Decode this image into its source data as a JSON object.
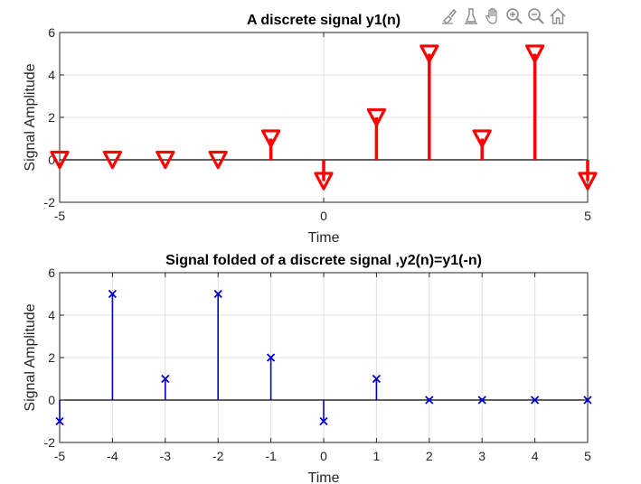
{
  "toolbar": {
    "buttons": [
      {
        "name": "brush-icon"
      },
      {
        "name": "datatip-icon"
      },
      {
        "name": "pan-hand-icon"
      },
      {
        "name": "zoom-in-icon"
      },
      {
        "name": "zoom-out-icon"
      },
      {
        "name": "home-icon"
      }
    ]
  },
  "chart_data": [
    {
      "type": "stem",
      "title": "A discrete signal y1(n)",
      "xlabel": "Time",
      "ylabel": "Signal Amplitude",
      "xlim": [
        -5,
        5
      ],
      "ylim": [
        -2,
        6
      ],
      "xticks": [
        "-5",
        "0",
        "5"
      ],
      "yticks": [
        "-2",
        "0",
        "2",
        "4",
        "6"
      ],
      "grid": true,
      "marker": "triangle-down",
      "color": "#ff0000",
      "x": [
        -5,
        -4,
        -3,
        -2,
        -1,
        0,
        1,
        2,
        3,
        4,
        5
      ],
      "y": [
        0,
        0,
        0,
        0,
        1,
        -1,
        2,
        5,
        1,
        5,
        -1
      ]
    },
    {
      "type": "stem",
      "title": "Signal folded of a discrete signal ,y2(n)=y1(-n)",
      "xlabel": "Time",
      "ylabel": "Signal Amplitude",
      "xlim": [
        -5,
        5
      ],
      "ylim": [
        -2,
        6
      ],
      "xticks": [
        "-5",
        "-4",
        "-3",
        "-2",
        "-1",
        "0",
        "1",
        "2",
        "3",
        "4",
        "5"
      ],
      "yticks": [
        "-2",
        "0",
        "2",
        "4",
        "6"
      ],
      "grid": true,
      "marker": "x",
      "color": "#0000cd",
      "x": [
        -5,
        -4,
        -3,
        -2,
        -1,
        0,
        1,
        2,
        3,
        4,
        5
      ],
      "y": [
        -1,
        5,
        1,
        5,
        2,
        -1,
        1,
        0,
        0,
        0,
        0
      ]
    }
  ]
}
